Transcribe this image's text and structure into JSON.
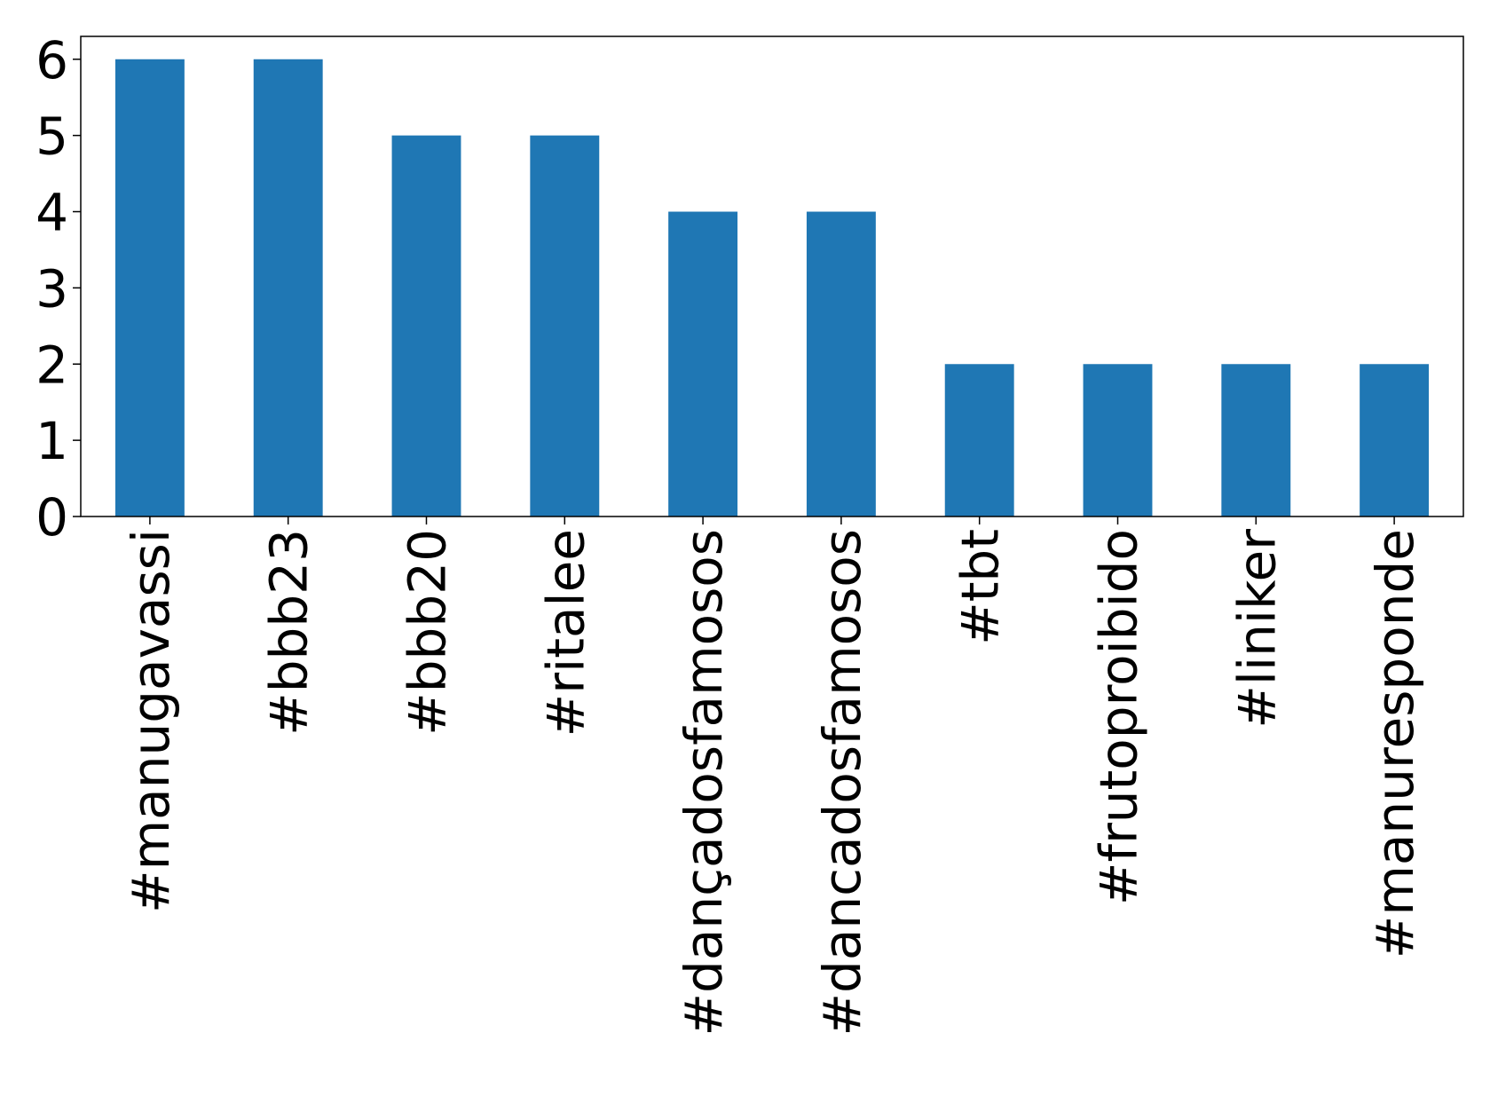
{
  "chart_data": {
    "type": "bar",
    "categories": [
      "#manugavassi",
      "#bbb23",
      "#bbb20",
      "#ritalee",
      "#dançadosfamosos",
      "#dancadosfamosos",
      "#tbt",
      "#frutoproibido",
      "#liniker",
      "#manuresponde"
    ],
    "values": [
      6,
      6,
      5,
      5,
      4,
      4,
      2,
      2,
      2,
      2
    ],
    "color": "#1f77b4",
    "ylim": [
      0,
      6.3
    ],
    "yticks": [
      0,
      1,
      2,
      3,
      4,
      5,
      6
    ],
    "grid": false
  }
}
